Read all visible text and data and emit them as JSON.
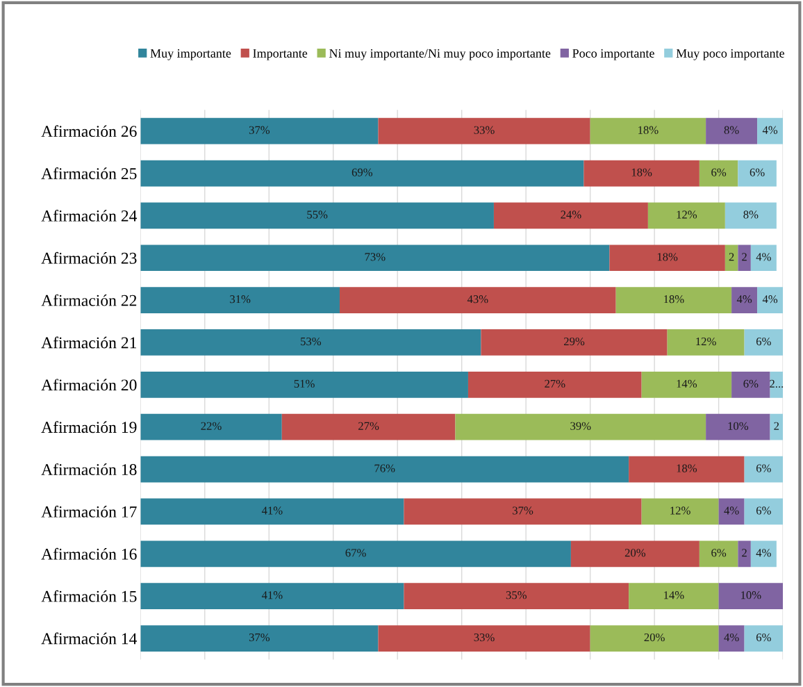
{
  "chart_data": {
    "type": "bar",
    "orientation": "horizontal",
    "stacked": true,
    "categories": [
      "Afirmación 26",
      "Afirmación 25",
      "Afirmación 24",
      "Afirmación 23",
      "Afirmación 22",
      "Afirmación 21",
      "Afirmación 20",
      "Afirmación 19",
      "Afirmación 18",
      "Afirmación 17",
      "Afirmación 16",
      "Afirmación 15",
      "Afirmación 14"
    ],
    "series": [
      {
        "name": "Muy importante",
        "color": "#31859c",
        "values": [
          37,
          69,
          55,
          73,
          31,
          53,
          51,
          22,
          76,
          41,
          67,
          41,
          37
        ],
        "value_labels": [
          "37%",
          "69%",
          "55%",
          "73%",
          "31%",
          "53%",
          "51%",
          "22%",
          "76%",
          "41%",
          "67%",
          "41%",
          "37%"
        ]
      },
      {
        "name": "Importante",
        "color": "#c0504d",
        "values": [
          33,
          18,
          24,
          18,
          43,
          29,
          27,
          27,
          18,
          37,
          20,
          35,
          33
        ],
        "value_labels": [
          "33%",
          "18%",
          "24%",
          "18%",
          "43%",
          "29%",
          "27%",
          "27%",
          "18%",
          "37%",
          "20%",
          "35%",
          "33%"
        ]
      },
      {
        "name": "Ni muy importante/Ni muy poco importante",
        "color": "#9bbb59",
        "values": [
          18,
          6,
          12,
          2,
          18,
          12,
          14,
          39,
          0,
          12,
          6,
          14,
          20
        ],
        "value_labels": [
          "18%",
          "6%",
          "12%",
          "2",
          "18%",
          "12%",
          "14%",
          "39%",
          null,
          "12%",
          "6%",
          "14%",
          "20%"
        ]
      },
      {
        "name": "Poco importante",
        "color": "#8064a2",
        "values": [
          8,
          0,
          0,
          2,
          4,
          0,
          6,
          10,
          0,
          4,
          2,
          10,
          4
        ],
        "value_labels": [
          "8%",
          null,
          null,
          "2",
          "4%",
          null,
          "6%",
          "10%",
          null,
          "4%",
          "2",
          "10%",
          "4%"
        ]
      },
      {
        "name": "Muy poco importante",
        "color": "#93cddd",
        "values": [
          4,
          6,
          8,
          4,
          4,
          6,
          2,
          2,
          6,
          6,
          4,
          0,
          6
        ],
        "value_labels": [
          "4%",
          "6%",
          "8%",
          "4%",
          "4%",
          "6%",
          "2...",
          "2",
          "6%",
          "6%",
          "4%",
          null,
          "6%"
        ]
      }
    ],
    "xlim": [
      0,
      100
    ],
    "xticks": [
      {
        "value": 0,
        "label": null
      },
      {
        "value": 10,
        "label": null
      },
      {
        "value": 20,
        "label": null
      },
      {
        "value": 30,
        "label": null
      },
      {
        "value": 40,
        "label": null
      },
      {
        "value": 50,
        "label": null
      },
      {
        "value": 60,
        "label": null
      },
      {
        "value": 70,
        "label": null
      },
      {
        "value": 80,
        "label": null
      },
      {
        "value": 90,
        "label": null
      },
      {
        "value": 100,
        "label": null
      }
    ],
    "grid": "x",
    "legend": "top",
    "tick_labels": "y"
  }
}
